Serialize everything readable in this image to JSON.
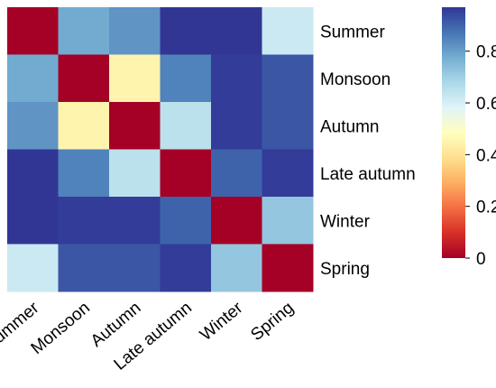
{
  "chart_data": {
    "type": "heatmap",
    "title": "",
    "xlabel": "",
    "ylabel": "",
    "x_categories": [
      "Summer",
      "Monsoon",
      "Autumn",
      "Late autumn",
      "Winter",
      "Spring"
    ],
    "y_categories": [
      "Summer",
      "Monsoon",
      "Autumn",
      "Late autumn",
      "Winter",
      "Spring"
    ],
    "values": [
      [
        0.0,
        0.78,
        0.82,
        0.97,
        0.97,
        0.62
      ],
      [
        0.78,
        0.0,
        0.45,
        0.85,
        0.96,
        0.92
      ],
      [
        0.82,
        0.45,
        0.0,
        0.65,
        0.96,
        0.92
      ],
      [
        0.97,
        0.85,
        0.65,
        0.0,
        0.9,
        0.96
      ],
      [
        0.97,
        0.96,
        0.96,
        0.9,
        0.0,
        0.72
      ],
      [
        0.62,
        0.92,
        0.92,
        0.96,
        0.72,
        0.0
      ]
    ],
    "colorbar": {
      "range": [
        0,
        0.97
      ],
      "ticks": [
        0,
        0.2,
        0.4,
        0.6,
        0.8
      ],
      "tick_labels": [
        "0",
        "0.2",
        "0.4",
        "0.6",
        "0.8"
      ],
      "colormap": "RdYlBu"
    },
    "grid": false,
    "legend": "colorbar-right"
  }
}
